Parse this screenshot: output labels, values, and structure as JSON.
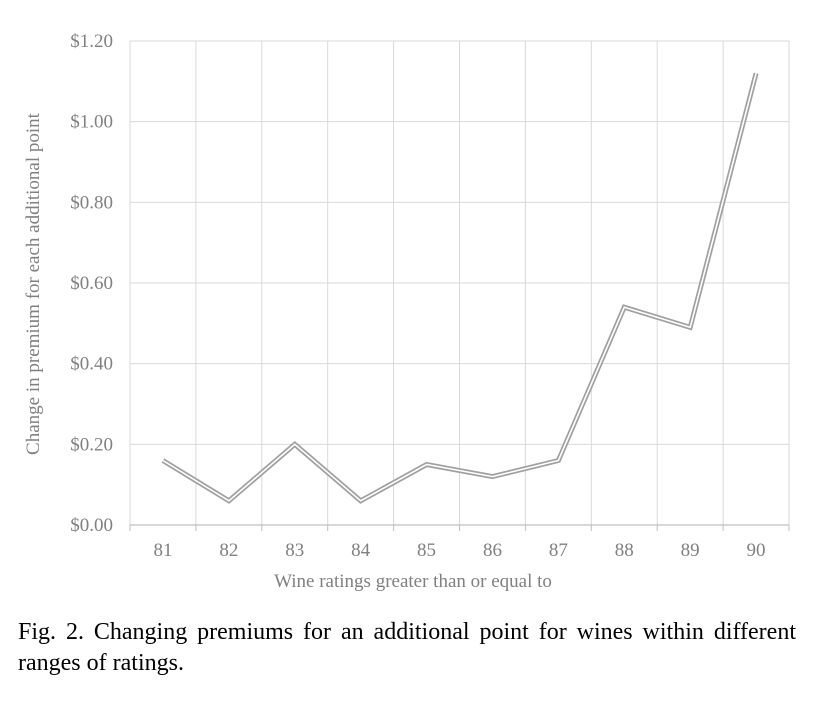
{
  "chart_data": {
    "type": "line",
    "categories": [
      "81",
      "82",
      "83",
      "84",
      "85",
      "86",
      "87",
      "88",
      "89",
      "90"
    ],
    "series": [
      {
        "values": [
          0.16,
          0.06,
          0.2,
          0.06,
          0.15,
          0.12,
          0.16,
          0.54,
          0.49,
          1.12
        ]
      }
    ],
    "y_ticks": [
      "$0.00",
      "$0.20",
      "$0.40",
      "$0.60",
      "$0.80",
      "$1.00",
      "$1.20"
    ],
    "y_tick_values": [
      0,
      0.2,
      0.4,
      0.6,
      0.8,
      1.0,
      1.2
    ],
    "ylim": [
      0,
      1.2
    ],
    "xlabel": "Wine ratings greater than or equal to",
    "ylabel": "Change in premium for each additional point",
    "grid": true,
    "line_style": "double",
    "colors": {
      "line": "#a0a0a0",
      "grid": "#d9d9d9",
      "axis": "#bfbfbf",
      "text": "#808080"
    }
  },
  "caption": "Fig. 2. Changing premiums for an additional point for wines within different ranges of ratings."
}
